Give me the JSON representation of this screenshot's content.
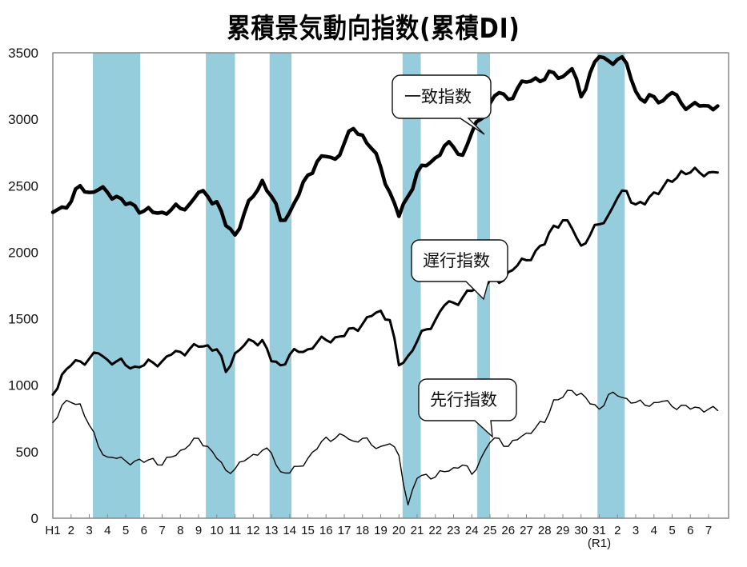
{
  "title": "累積景気動向指数(累積DI)",
  "colors": {
    "band": "#96cddd",
    "line": "#000000",
    "axis": "#888888",
    "background": "#ffffff"
  },
  "callouts": {
    "coincident": "一致指数",
    "lagging": "遅行指数",
    "leading": "先行指数"
  },
  "chart_data": {
    "type": "line",
    "title": "累積景気動向指数(累積DI)",
    "xlabel": "",
    "ylabel": "",
    "ylim": [
      0,
      3500
    ],
    "yticks": [
      0,
      500,
      1000,
      1500,
      2000,
      2500,
      3000,
      3500
    ],
    "xtick_labels": [
      "H1",
      "2",
      "3",
      "4",
      "5",
      "6",
      "7",
      "8",
      "9",
      "10",
      "11",
      "12",
      "13",
      "14",
      "15",
      "16",
      "17",
      "18",
      "19",
      "20",
      "21",
      "22",
      "23",
      "24",
      "25",
      "26",
      "27",
      "28",
      "29",
      "30",
      "31",
      "2",
      "3",
      "4",
      "5",
      "6",
      "7"
    ],
    "xtick_sublabel": {
      "index": 30,
      "text": "(R1)"
    },
    "grid": false,
    "legend": "callouts",
    "recession_bands_years": [
      [
        3.2,
        5.8
      ],
      [
        9.4,
        11.0
      ],
      [
        12.9,
        14.1
      ],
      [
        20.2,
        21.2
      ],
      [
        24.3,
        25.0
      ],
      [
        30.9,
        32.4
      ]
    ],
    "x": [
      1,
      1.5,
      2,
      2.5,
      3,
      3.5,
      4,
      4.5,
      5,
      5.5,
      6,
      6.5,
      7,
      7.5,
      8,
      8.5,
      9,
      9.5,
      10,
      10.5,
      11,
      11.5,
      12,
      12.5,
      13,
      13.5,
      14,
      14.5,
      15,
      15.5,
      16,
      16.5,
      17,
      17.5,
      18,
      18.5,
      19,
      19.5,
      20,
      20.5,
      21,
      21.5,
      22,
      22.5,
      23,
      23.5,
      24,
      24.5,
      25,
      25.5,
      26,
      26.5,
      27,
      27.5,
      28,
      28.5,
      29,
      29.5,
      30,
      30.5,
      31,
      31.5,
      32,
      32.5,
      33,
      33.5,
      34,
      34.5,
      35,
      35.5,
      36,
      36.5,
      37,
      37.5
    ],
    "series": [
      {
        "name": "一致指数",
        "style": "thick",
        "values": [
          2300,
          2340,
          2380,
          2500,
          2450,
          2470,
          2450,
          2420,
          2360,
          2350,
          2310,
          2300,
          2300,
          2320,
          2330,
          2360,
          2450,
          2420,
          2380,
          2200,
          2130,
          2290,
          2420,
          2540,
          2420,
          2240,
          2300,
          2430,
          2580,
          2680,
          2720,
          2700,
          2820,
          2930,
          2880,
          2780,
          2640,
          2450,
          2270,
          2420,
          2600,
          2650,
          2710,
          2800,
          2790,
          2730,
          2900,
          3000,
          3120,
          3200,
          3150,
          3230,
          3280,
          3310,
          3300,
          3350,
          3320,
          3380,
          3170,
          3350,
          3470,
          3440,
          3450,
          3420,
          3210,
          3130,
          3170,
          3140,
          3200,
          3120,
          3100,
          3100,
          3100,
          3100
        ]
      },
      {
        "name": "遅行指数",
        "style": "medium",
        "values": [
          930,
          1080,
          1150,
          1180,
          1200,
          1240,
          1190,
          1180,
          1150,
          1140,
          1150,
          1170,
          1180,
          1230,
          1250,
          1270,
          1290,
          1300,
          1270,
          1100,
          1240,
          1300,
          1330,
          1340,
          1180,
          1150,
          1230,
          1250,
          1270,
          1320,
          1340,
          1360,
          1370,
          1430,
          1460,
          1520,
          1560,
          1490,
          1150,
          1220,
          1330,
          1420,
          1490,
          1600,
          1620,
          1660,
          1710,
          1740,
          1790,
          1770,
          1850,
          1900,
          1940,
          2010,
          2060,
          2200,
          2240,
          2180,
          2050,
          2130,
          2210,
          2280,
          2410,
          2460,
          2360,
          2360,
          2450,
          2490,
          2530,
          2610,
          2600,
          2600,
          2600,
          2600
        ]
      },
      {
        "name": "先行指数",
        "style": "thin",
        "values": [
          720,
          850,
          870,
          860,
          700,
          540,
          460,
          450,
          430,
          430,
          420,
          450,
          400,
          460,
          510,
          550,
          600,
          540,
          450,
          360,
          370,
          430,
          480,
          510,
          490,
          350,
          340,
          390,
          450,
          520,
          610,
          600,
          620,
          580,
          600,
          550,
          540,
          560,
          470,
          100,
          300,
          330,
          310,
          350,
          380,
          400,
          330,
          450,
          570,
          600,
          540,
          590,
          640,
          680,
          720,
          890,
          910,
          960,
          940,
          860,
          820,
          930,
          920,
          900,
          870,
          850,
          870,
          880,
          840,
          850,
          820,
          830,
          820,
          810
        ]
      }
    ]
  }
}
